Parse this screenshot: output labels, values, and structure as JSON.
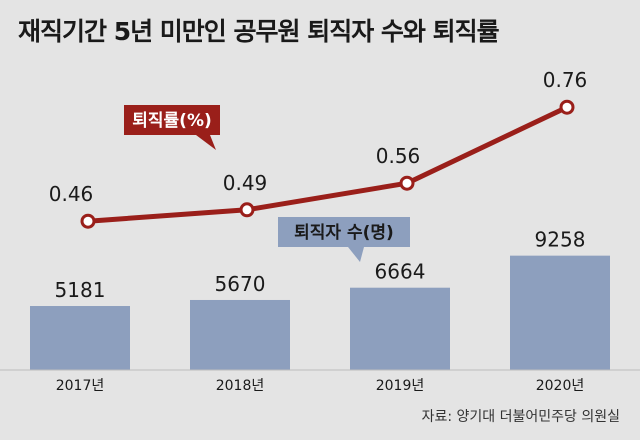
{
  "title": "재직기간 5년 미만인 공무원 퇴직자 수와 퇴직률",
  "source": "자료: 양기대 더불어민주당 의원실",
  "colors": {
    "background": "#e4e4e4",
    "bar": "#8d9fbe",
    "line": "#9a1f1a",
    "marker_fill": "#ffffff",
    "rate_label_bg": "#9a1f1a",
    "count_label_bg": "#8d9fbe"
  },
  "chart_data": [
    {
      "type": "bar",
      "categories": [
        "2017년",
        "2018년",
        "2019년",
        "2020년"
      ],
      "series": [
        {
          "name": "퇴직자 수(명)",
          "values": [
            5181,
            5670,
            6664,
            9258
          ]
        }
      ],
      "data_labels": [
        "5181",
        "5670",
        "6664",
        "9258"
      ],
      "ylim": [
        0,
        10000
      ]
    },
    {
      "type": "line",
      "categories": [
        "2017년",
        "2018년",
        "2019년",
        "2020년"
      ],
      "series": [
        {
          "name": "퇴직률(%)",
          "values": [
            0.46,
            0.49,
            0.56,
            0.76
          ]
        }
      ],
      "data_labels": [
        "0.46",
        "0.49",
        "0.56",
        "0.76"
      ],
      "ylim": [
        0.3,
        0.8
      ]
    }
  ]
}
